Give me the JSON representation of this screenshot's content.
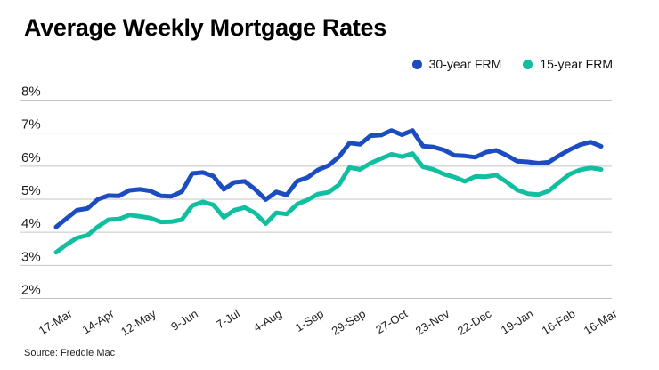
{
  "title": "Average Weekly Mortgage Rates",
  "source": "Source: Freddie Mac",
  "legend": [
    {
      "label": "30-year FRM",
      "color": "#1b4dc1"
    },
    {
      "label": "15-year FRM",
      "color": "#10bfa0"
    }
  ],
  "chart_data": {
    "type": "line",
    "title": "Average Weekly Mortgage Rates",
    "ylabel": "",
    "xlabel": "",
    "ylim": [
      2,
      8
    ],
    "y_ticks": [
      {
        "value": 8,
        "label": "8%"
      },
      {
        "value": 7,
        "label": "7%"
      },
      {
        "value": 6,
        "label": "6%"
      },
      {
        "value": 5,
        "label": "5%"
      },
      {
        "value": 4,
        "label": "4%"
      },
      {
        "value": 3,
        "label": "3%"
      },
      {
        "value": 2,
        "label": "2%"
      }
    ],
    "x_tick_labels": [
      "17-Mar",
      "14-Apr",
      "12-May",
      "9-Jun",
      "7-Jul",
      "4-Aug",
      "1-Sep",
      "29-Sep",
      "27-Oct",
      "23-Nov",
      "22-Dec",
      "19-Jan",
      "16-Feb",
      "16-Mar"
    ],
    "x_tick_indices": [
      0,
      4,
      8,
      12,
      16,
      20,
      24,
      28,
      32,
      36,
      40,
      44,
      48,
      52
    ],
    "grid": true,
    "legend_position": "top-right",
    "series": [
      {
        "name": "30-year FRM",
        "color": "#1b4dc1",
        "values": [
          4.16,
          4.42,
          4.67,
          4.72,
          5.0,
          5.11,
          5.1,
          5.27,
          5.3,
          5.25,
          5.1,
          5.09,
          5.23,
          5.78,
          5.81,
          5.7,
          5.3,
          5.51,
          5.54,
          5.3,
          4.99,
          5.22,
          5.13,
          5.55,
          5.66,
          5.89,
          6.02,
          6.29,
          6.7,
          6.66,
          6.92,
          6.94,
          7.08,
          6.95,
          7.08,
          6.61,
          6.58,
          6.49,
          6.33,
          6.31,
          6.27,
          6.42,
          6.48,
          6.33,
          6.15,
          6.13,
          6.09,
          6.12,
          6.32,
          6.5,
          6.65,
          6.73,
          6.6
        ]
      },
      {
        "name": "15-year FRM",
        "color": "#10bfa0",
        "values": [
          3.39,
          3.63,
          3.83,
          3.91,
          4.17,
          4.38,
          4.4,
          4.52,
          4.48,
          4.43,
          4.31,
          4.32,
          4.38,
          4.81,
          4.92,
          4.83,
          4.45,
          4.67,
          4.75,
          4.58,
          4.26,
          4.59,
          4.55,
          4.85,
          4.98,
          5.16,
          5.21,
          5.44,
          5.96,
          5.9,
          6.09,
          6.23,
          6.36,
          6.29,
          6.38,
          5.98,
          5.9,
          5.76,
          5.67,
          5.54,
          5.69,
          5.68,
          5.73,
          5.52,
          5.28,
          5.17,
          5.14,
          5.25,
          5.51,
          5.76,
          5.89,
          5.95,
          5.9
        ]
      }
    ]
  }
}
